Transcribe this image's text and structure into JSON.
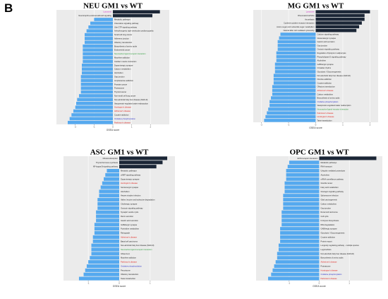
{
  "figure": {
    "panel_letter": "B"
  },
  "colors": {
    "positive": "#1b2636",
    "negative": "#55a9ef",
    "plot_bg": "#ebebeb",
    "grid": "#ffffff",
    "label_default": "#222222",
    "label_red": "#e0201b",
    "label_green": "#2e9e3c",
    "label_magenta": "#d12ac8",
    "label_blue": "#2b31c8"
  },
  "chart_data": [
    {
      "type": "bar",
      "orientation": "horizontal",
      "title": "NEU  GM1 vs WT",
      "xlabel": "GSEA score",
      "xlim": [
        -3,
        3
      ],
      "xticks": [
        -2,
        -1,
        0,
        1,
        2
      ],
      "grid": true,
      "categories": [
        "Lysosome",
        "Neurotrophin-endocannabinoid signaling",
        "Metabolic pathways",
        "Chemokine signaling pathway",
        "Ube GTP signaling pathway",
        "Arrhythmogenic right ventricular cardiomyopathy",
        "Small cell lung cancer",
        "Adherens junction",
        "Olfactory transduction",
        "Biosynthesis of amino acids",
        "Endometrial cancer",
        "Neuroactive ligand-receptor interaction",
        "Morphine addiction",
        "Cardiac muscle contraction",
        "Dopaminergic synapse",
        "Calcium metabolism",
        "Alcoholism",
        "Gap junction",
        "Amphetamine addiction",
        "Prostate cancer",
        "Proteasome",
        "Thyroid cancer",
        "Non-small cell lung cancer",
        "Non-alcoholic fatty liver disease (NAFLD)",
        "Vasopressin-regulated water reabsorption",
        "Huntington's disease",
        "Alzheimer's disease",
        "Cocaine addiction",
        "Oxidative phosphorylation",
        "Parkinson's disease"
      ],
      "label_colors": [
        "magenta",
        "default",
        "default",
        "default",
        "default",
        "default",
        "default",
        "default",
        "default",
        "default",
        "default",
        "green",
        "default",
        "default",
        "default",
        "default",
        "default",
        "default",
        "default",
        "default",
        "default",
        "default",
        "default",
        "default",
        "default",
        "red",
        "red",
        "default",
        "blue",
        "red"
      ],
      "values": [
        2.5,
        2.1,
        -1.0,
        -1.2,
        -1.3,
        -1.4,
        -1.5,
        -1.5,
        -1.5,
        -1.6,
        -1.6,
        -1.6,
        -1.6,
        -1.6,
        -1.65,
        -1.65,
        -1.65,
        -1.7,
        -1.7,
        -1.7,
        -1.7,
        -1.7,
        -1.8,
        -1.9,
        -1.95,
        -2.0,
        -2.1,
        -2.2,
        -2.3,
        -2.4
      ]
    },
    {
      "type": "bar",
      "orientation": "horizontal",
      "title": "MG  GM1 vs WT",
      "xlabel": "GSEA score",
      "xlim": [
        -2.3,
        2.3
      ],
      "xticks": [
        -2,
        -1,
        0,
        1,
        2
      ],
      "grid": true,
      "categories": [
        "Lysosome",
        "Rheumatoid arthritis",
        "Amoebiasis",
        "Cytokine-cytokine receptor interaction",
        "Amino sugar and nucleotide sugar metabolism",
        "Natural killer cell mediated cytotoxicity",
        "Calcium signaling pathway",
        "Glutamatergic synapse",
        "Gastric acid secretion",
        "Gap junction",
        "Oxytocin signaling pathway",
        "Regulation of lipolysis in adipocytes",
        "Phospholipase D signaling pathway",
        "Alcoholism",
        "GABAergic synapse",
        "Circadian rhythm",
        "Glycolysis / Gluconeogenesis",
        "Non-alcoholic fatty liver disease (NAFLD)",
        "Nicotine addiction",
        "Cocaine addiction",
        "Olfactory transduction",
        "Alzheimer's disease",
        "Carbon metabolism",
        "Biosynthesis of amino acids",
        "Oxidative phosphorylation",
        "Vasopressin-regulated water reabsorption",
        "Neuroactive ligand-receptor interaction",
        "Parkinson's disease",
        "Huntington's disease",
        "Taste transduction"
      ],
      "label_colors": [
        "magenta",
        "default",
        "default",
        "default",
        "default",
        "default",
        "default",
        "default",
        "default",
        "default",
        "default",
        "default",
        "default",
        "default",
        "default",
        "default",
        "default",
        "default",
        "default",
        "default",
        "default",
        "red",
        "default",
        "default",
        "blue",
        "default",
        "green",
        "red",
        "red",
        "default"
      ],
      "values": [
        2.0,
        1.8,
        1.8,
        1.7,
        1.6,
        1.5,
        -1.3,
        -1.35,
        -1.4,
        -1.4,
        -1.4,
        -1.45,
        -1.45,
        -1.45,
        -1.5,
        -1.5,
        -1.5,
        -1.55,
        -1.55,
        -1.55,
        -1.6,
        -1.6,
        -1.6,
        -1.65,
        -1.7,
        -1.7,
        -1.75,
        -1.8,
        -1.85,
        -1.9
      ]
    },
    {
      "type": "bar",
      "orientation": "horizontal",
      "title": "ASC  GM1 vs WT",
      "xlabel": "GSEA score",
      "xlim": [
        -1.8,
        1.8
      ],
      "xticks": [
        -1,
        0,
        1
      ],
      "grid": true,
      "categories": [
        "Mineral absorption",
        "Thyroid hormone synthesis",
        "NF-kappa B signaling pathway",
        "Metabolic pathways",
        "cAMP signaling pathway",
        "Dopaminergic synapse",
        "Huntington's disease",
        "Serotonergic synapse",
        "Alcoholism",
        "Herpes simplex infection",
        "Valine, leucine and isoleucine degradation",
        "Cholinergic synapse",
        "Oxytocin signaling pathway",
        "Synaptic vesicle cycle",
        "Renin secretion",
        "Gastric acid secretion",
        "GABAergic synapse",
        "Pyrimidine metabolism",
        "Retrograde",
        "Alzheimer's disease",
        "Basal cell carcinoma",
        "Non-alcoholic fatty liver disease (NAFLD)",
        "Neuroactive ligand-receptor interaction",
        "Influenza A",
        "Morphine addiction",
        "Parkinson's disease",
        "Oxidative phosphorylation",
        "Peroxisome",
        "Olfactory transduction",
        "Taste transduction"
      ],
      "label_colors": [
        "default",
        "default",
        "default",
        "default",
        "default",
        "default",
        "red",
        "default",
        "default",
        "default",
        "default",
        "default",
        "default",
        "default",
        "default",
        "default",
        "default",
        "default",
        "default",
        "red",
        "default",
        "default",
        "green",
        "default",
        "default",
        "red",
        "blue",
        "default",
        "default",
        "default"
      ],
      "values": [
        1.55,
        1.4,
        1.2,
        -0.4,
        -0.45,
        -0.5,
        -0.55,
        -0.6,
        -0.65,
        -0.65,
        -0.7,
        -0.7,
        -0.7,
        -0.75,
        -0.75,
        -0.75,
        -0.8,
        -0.8,
        -0.8,
        -0.85,
        -0.85,
        -0.9,
        -0.9,
        -0.9,
        -0.95,
        -1.0,
        -1.05,
        -1.1,
        -1.15,
        -1.3
      ]
    },
    {
      "type": "bar",
      "orientation": "horizontal",
      "title": "OPC  GM1 vs WT",
      "xlabel": "GSEA score",
      "xlim": [
        -2.1,
        2.1
      ],
      "xticks": [
        -1,
        0,
        1
      ],
      "grid": true,
      "categories": [
        "ECM-receptor interaction",
        "Metabolic pathways",
        "RNA transport",
        "Ubiquitin mediated proteolysis",
        "Alcoholism",
        "mRNA surveillance pathway",
        "Glucide renew",
        "Fatty acid metabolism",
        "Glucagon signaling pathway",
        "Spliceosome infection",
        "Glial carcinogenesis",
        "Carbon metabolism",
        "Gap junction",
        "Renal cell carcinoma",
        "Cell cycle",
        "N-Glycan biosynthesis",
        "RNA degradation",
        "GABAergic synapse",
        "Glycolysis / Gluconeogenesis",
        "Cocaine addiction",
        "Protein export",
        "Longevity regulating pathway - multiple species",
        "Legionellosis",
        "Non-alcoholic fatty liver disease (NAFLD)",
        "Biosynthesis of amino acids",
        "Alzheimer's disease",
        "Proteasome",
        "Huntington's disease",
        "Oxidative phosphorylation",
        "Parkinson's disease"
      ],
      "label_colors": [
        "default",
        "default",
        "default",
        "default",
        "default",
        "default",
        "default",
        "default",
        "default",
        "default",
        "default",
        "default",
        "default",
        "default",
        "default",
        "default",
        "default",
        "default",
        "default",
        "default",
        "default",
        "default",
        "default",
        "default",
        "default",
        "red",
        "default",
        "red",
        "blue",
        "red"
      ],
      "values": [
        1.9,
        -1.0,
        -1.05,
        -1.1,
        -1.1,
        -1.1,
        -1.15,
        -1.15,
        -1.15,
        -1.2,
        -1.2,
        -1.2,
        -1.2,
        -1.25,
        -1.25,
        -1.25,
        -1.25,
        -1.3,
        -1.3,
        -1.3,
        -1.3,
        -1.35,
        -1.35,
        -1.4,
        -1.4,
        -1.45,
        -1.5,
        -1.55,
        -1.6,
        -1.7
      ]
    }
  ]
}
